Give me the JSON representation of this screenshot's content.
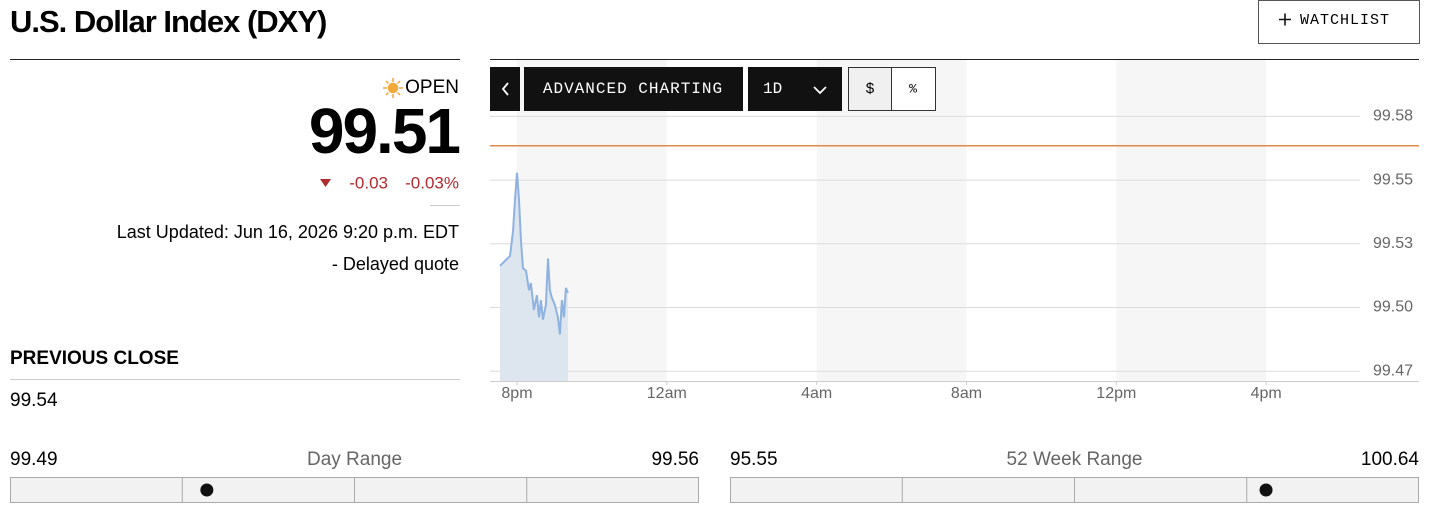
{
  "header": {
    "title": "U.S. Dollar Index (DXY)",
    "watchlist": "WATCHLIST"
  },
  "quote": {
    "status": "OPEN",
    "price": 99.51,
    "change": -0.03,
    "change_pct": "-0.03%",
    "updated": "Last Updated: Jun 16, 2026 9:20 p.m. EDT",
    "delayed": "- Delayed quote"
  },
  "previous_close": {
    "label": "PREVIOUS CLOSE",
    "value": 99.54
  },
  "toolbar": {
    "advanced": "ADVANCED CHARTING",
    "interval": "1D",
    "dollar": "$",
    "percent": "%"
  },
  "chart_data": {
    "type": "line",
    "color": "#8fb3e0",
    "fill": "#dde5ee",
    "x": [
      19.547,
      19.68,
      19.813,
      19.893,
      19.947,
      20,
      20.053,
      20.107,
      20.16,
      20.24,
      20.32,
      20.373,
      20.453,
      20.533,
      20.587,
      20.64,
      20.693,
      20.773,
      20.827,
      20.88,
      20.933,
      21.013,
      21.093,
      21.147,
      21.2,
      21.253,
      21.307,
      21.36
    ],
    "values": [
      99.517,
      99.519,
      99.521,
      99.531,
      99.544,
      99.555,
      99.544,
      99.527,
      99.516,
      99.515,
      99.507,
      99.51,
      99.499,
      99.505,
      99.496,
      99.503,
      99.495,
      99.501,
      99.52,
      99.507,
      99.504,
      99.501,
      99.496,
      99.489,
      99.503,
      99.496,
      99.508,
      99.506
    ],
    "reference_line": 99.566,
    "reference_color": "#e08a4a",
    "shaded_bands": [
      [
        20,
        24
      ],
      [
        28,
        32
      ],
      [
        36,
        40
      ]
    ],
    "xlim": [
      19.28,
      44.08
    ],
    "xticks": [
      {
        "value": 20,
        "label": "8pm"
      },
      {
        "value": 24,
        "label": "12am"
      },
      {
        "value": 28,
        "label": "4am"
      },
      {
        "value": 32,
        "label": "8am"
      },
      {
        "value": 36,
        "label": "12pm"
      },
      {
        "value": 40,
        "label": "4pm"
      }
    ],
    "ylim": [
      99.47,
      99.601
    ],
    "yticks": [
      {
        "value": 99.474,
        "label": "99.47"
      },
      {
        "value": 99.5,
        "label": "99.50"
      },
      {
        "value": 99.526,
        "label": "99.53"
      },
      {
        "value": 99.552,
        "label": "99.55"
      },
      {
        "value": 99.578,
        "label": "99.58"
      }
    ],
    "grid": true
  },
  "day_range": {
    "low": 99.49,
    "label": "Day Range",
    "high": 99.56
  },
  "week52_range": {
    "low": 95.55,
    "label": "52 Week Range",
    "high": 100.64
  }
}
